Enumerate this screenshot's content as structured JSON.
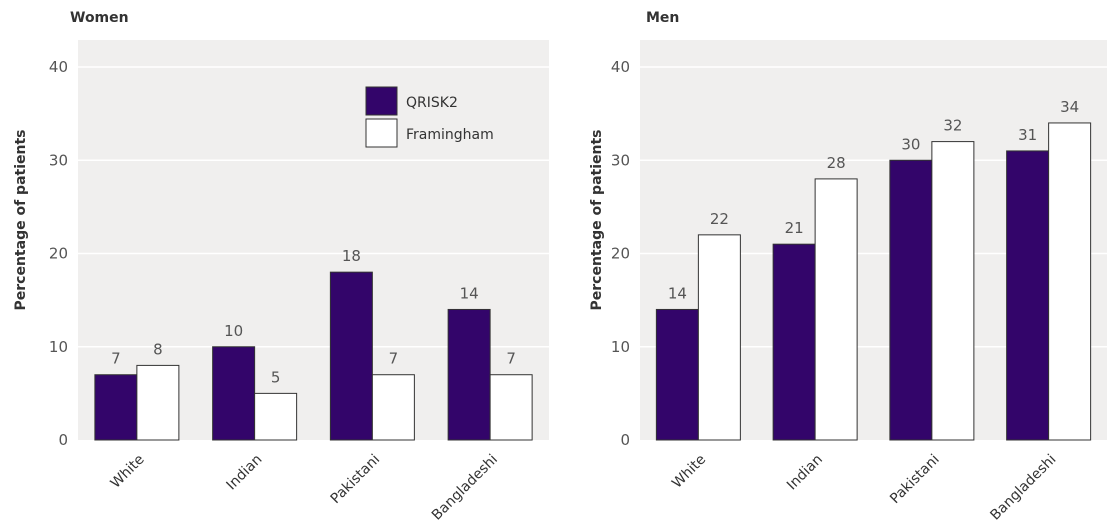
{
  "chart_data": [
    {
      "type": "bar",
      "title": "Women",
      "ylabel": "Percentage of patients",
      "ylim": [
        0,
        40
      ],
      "yticks": [
        0,
        10,
        20,
        30,
        40
      ],
      "grid": true,
      "legend": "top-right",
      "categories": [
        "White",
        "Indian",
        "Pakistani",
        "Bangladeshi"
      ],
      "series": [
        {
          "name": "QRISK2",
          "color": "#33056a",
          "values": [
            7,
            10,
            18,
            14
          ]
        },
        {
          "name": "Framingham",
          "color": "#ffffff",
          "values": [
            8,
            5,
            7,
            7
          ]
        }
      ]
    },
    {
      "type": "bar",
      "title": "Men",
      "ylabel": "Percentage of patients",
      "ylim": [
        0,
        40
      ],
      "yticks": [
        0,
        10,
        20,
        30,
        40
      ],
      "grid": true,
      "categories": [
        "White",
        "Indian",
        "Pakistani",
        "Bangladeshi"
      ],
      "series": [
        {
          "name": "QRISK2",
          "color": "#33056a",
          "values": [
            14,
            21,
            30,
            31
          ]
        },
        {
          "name": "Framingham",
          "color": "#ffffff",
          "values": [
            22,
            28,
            32,
            34
          ]
        }
      ]
    }
  ],
  "colors": {
    "plot_background": "#f0efee",
    "gridline": "#ffffff",
    "bar_outline": "#333333"
  }
}
